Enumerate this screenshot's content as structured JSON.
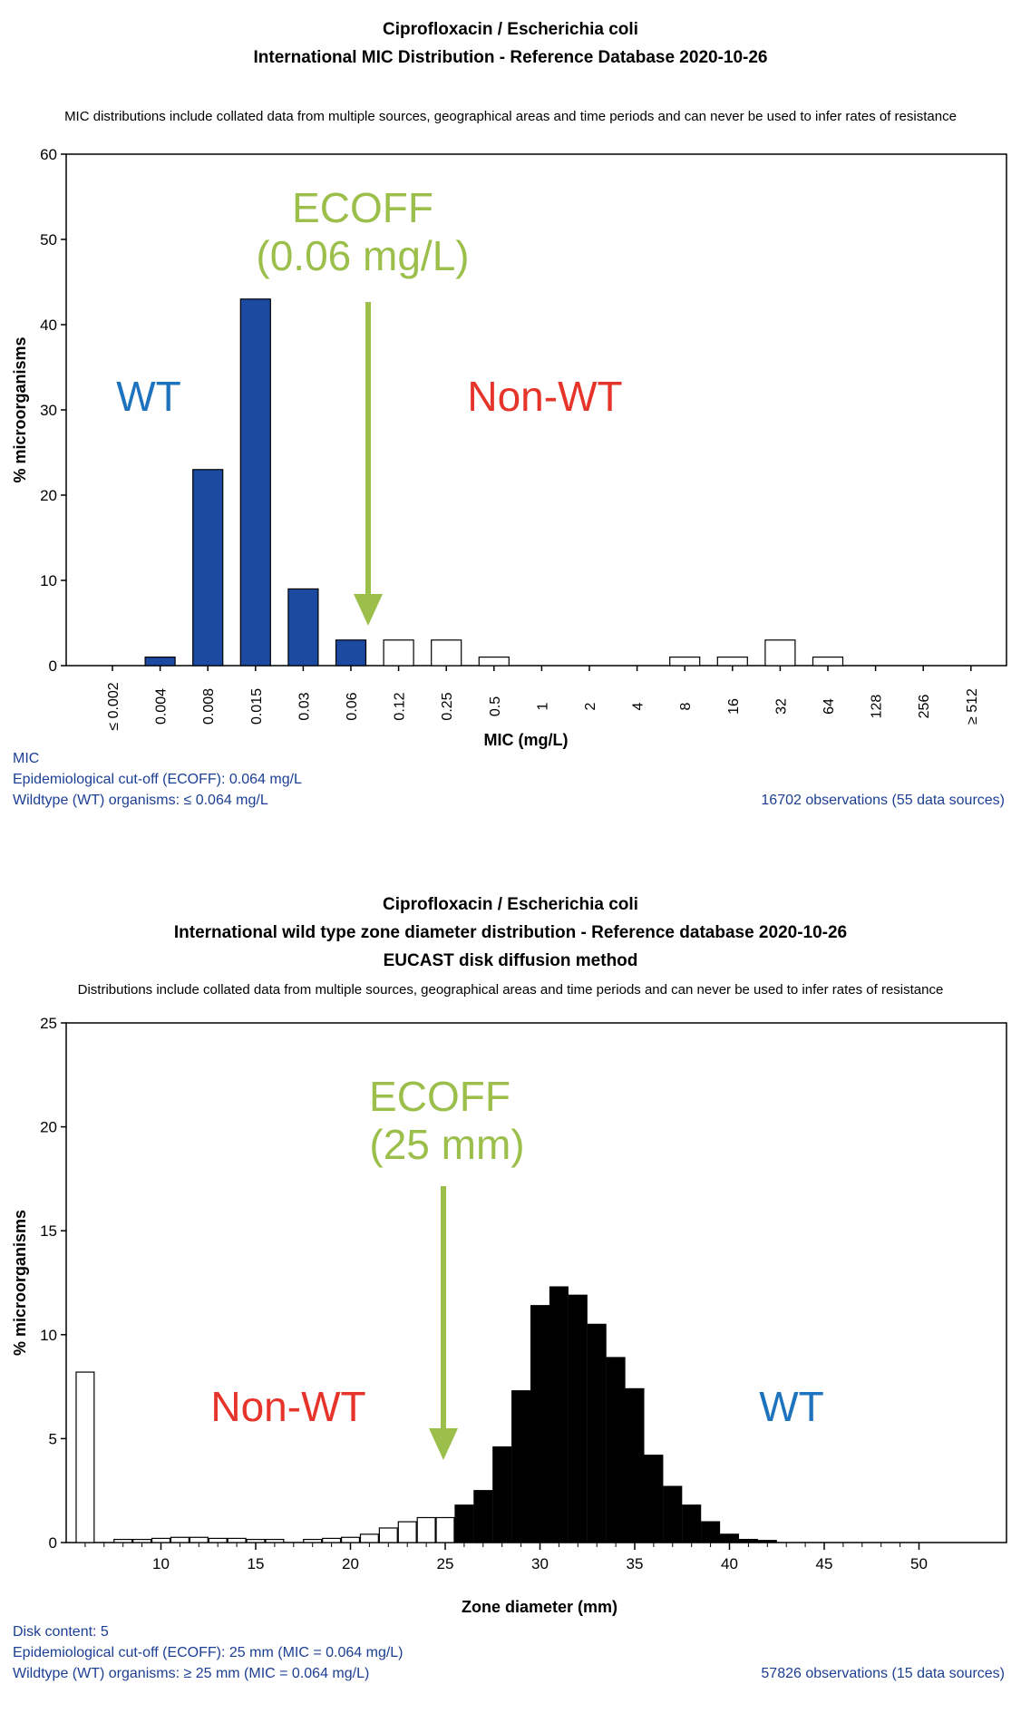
{
  "mic_panel": {
    "title_line1": "Ciprofloxacin / Escherichia coli",
    "title_line2": "International MIC Distribution - Reference Database 2020-10-26",
    "disclaimer": "MIC distributions include collated data from multiple sources, geographical areas and time periods and can never be used to infer rates of resistance",
    "info_line1": "MIC",
    "info_line2": "Epidemiological cut-off (ECOFF): 0.064 mg/L",
    "info_line3": "Wildtype (WT) organisms:  ≤ 0.064 mg/L",
    "observations": "16702 observations (55 data sources)",
    "annotations": {
      "ecoff_line1": "ECOFF",
      "ecoff_line2": "(0.06 mg/L)",
      "wt_label": "WT",
      "nonwt_label": "Non-WT"
    },
    "colors": {
      "wt_bar": "#1c4aa0",
      "nonwt_bar": "#ffffff",
      "arrow": "#9bbf4a"
    }
  },
  "zone_panel": {
    "title_line1": "Ciprofloxacin / Escherichia coli",
    "title_line2": "International wild type zone diameter distribution - Reference database 2020-10-26",
    "title_line3": "EUCAST disk diffusion method",
    "disclaimer": "Distributions include collated data from multiple sources, geographical areas and time periods and can never be used to infer rates of resistance",
    "info_line1": "Disk content: 5",
    "info_line2": "Epidemiological cut-off (ECOFF): 25 mm (MIC = 0.064 mg/L)",
    "info_line3": "Wildtype (WT) organisms:  ≥ 25 mm (MIC = 0.064 mg/L)",
    "observations": "57826 observations (15 data sources)",
    "annotations": {
      "ecoff_line1": "ECOFF",
      "ecoff_line2": "(25 mm)",
      "wt_label": "WT",
      "nonwt_label": "Non-WT"
    },
    "colors": {
      "wt_bar": "#000000",
      "nonwt_bar": "#ffffff",
      "arrow": "#9bbf4a"
    }
  },
  "chart_data": [
    {
      "type": "bar",
      "title": "Ciprofloxacin / Escherichia coli — International MIC Distribution - Reference Database 2020-10-26",
      "xlabel": "MIC (mg/L)",
      "ylabel": "% microorganisms",
      "ylim": [
        0,
        60
      ],
      "yticks": [
        0,
        10,
        20,
        30,
        40,
        50,
        60
      ],
      "categories": [
        "≤ 0.002",
        "0.004",
        "0.008",
        "0.015",
        "0.03",
        "0.06",
        "0.12",
        "0.25",
        "0.5",
        "1",
        "2",
        "4",
        "8",
        "16",
        "32",
        "64",
        "128",
        "256",
        "≥ 512"
      ],
      "values": [
        0,
        1,
        23,
        43,
        9,
        3,
        3,
        3,
        1,
        0,
        0,
        0,
        1,
        1,
        3,
        1,
        0,
        0,
        0
      ],
      "wild_type": [
        true,
        true,
        true,
        true,
        true,
        true,
        false,
        false,
        false,
        false,
        false,
        false,
        false,
        false,
        false,
        false,
        false,
        false,
        false
      ],
      "grid": false
    },
    {
      "type": "bar",
      "title": "Ciprofloxacin / Escherichia coli — International wild type zone diameter distribution - Reference database 2020-10-26",
      "xlabel": "Zone diameter (mm)",
      "ylabel": "% microorganisms",
      "ylim": [
        0,
        25
      ],
      "yticks": [
        0,
        5,
        10,
        15,
        20,
        25
      ],
      "xlim": [
        5,
        55
      ],
      "xticks": [
        10,
        15,
        20,
        25,
        30,
        35,
        40,
        45,
        50
      ],
      "x": [
        6,
        7,
        8,
        9,
        10,
        11,
        12,
        13,
        14,
        15,
        16,
        17,
        18,
        19,
        20,
        21,
        22,
        23,
        24,
        25,
        26,
        27,
        28,
        29,
        30,
        31,
        32,
        33,
        34,
        35,
        36,
        37,
        38,
        39,
        40,
        41,
        42,
        43,
        44,
        45,
        46,
        47,
        48,
        49,
        50
      ],
      "values": [
        8.2,
        0,
        0.15,
        0.15,
        0.2,
        0.25,
        0.25,
        0.2,
        0.2,
        0.15,
        0.15,
        0,
        0.15,
        0.2,
        0.25,
        0.4,
        0.7,
        1.0,
        1.2,
        1.2,
        1.8,
        2.5,
        4.6,
        7.3,
        11.4,
        12.3,
        11.9,
        10.5,
        8.9,
        7.4,
        4.2,
        2.7,
        1.8,
        1.0,
        0.4,
        0.15,
        0.1,
        0,
        0,
        0,
        0,
        0,
        0,
        0,
        0
      ],
      "wt_threshold": 25,
      "grid": false
    }
  ]
}
